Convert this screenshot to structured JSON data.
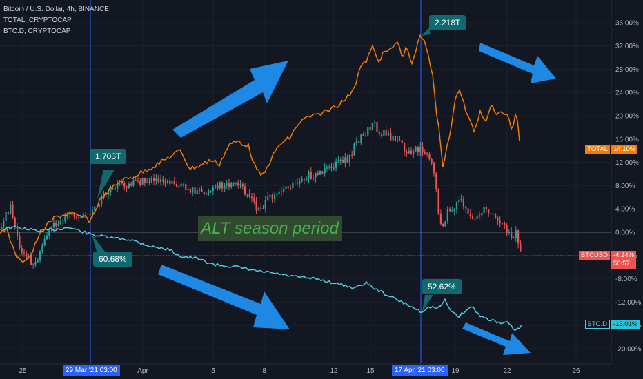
{
  "legend": {
    "line1": "Bitcoin / U.S. Dollar, 4h, BINANCE",
    "line2": "TOTAL, CRYPTOCAP",
    "line3": "BTC.D, CRYPTOCAP"
  },
  "chart_data": {
    "type": "line",
    "yaxis_ticks": [
      "36.00%",
      "32.00%",
      "28.00%",
      "24.00%",
      "20.00%",
      "16.00%",
      "12.00%",
      "8.00%",
      "4.00%",
      "0.00%",
      "-4.00%",
      "-8.00%",
      "-12.00%",
      "-16.00%",
      "-20.00%"
    ],
    "yaxis_values": [
      36,
      32,
      28,
      24,
      20,
      16,
      12,
      8,
      4,
      0,
      -4,
      -8,
      -12,
      -16,
      -20
    ],
    "xaxis_ticks": [
      "25",
      "Apr",
      "5",
      "8",
      "12",
      "15",
      "19",
      "22",
      "26"
    ],
    "ylim": [
      -22,
      38
    ],
    "series": [
      {
        "name": "TOTAL",
        "color": "#f57c00"
      },
      {
        "name": "BTCUSD",
        "color": "#26a69a"
      },
      {
        "name": "BTC.D",
        "color": "#4dd0e1"
      }
    ]
  },
  "price_tags": {
    "total_label": "TOTAL",
    "total_value": "14.10%",
    "btcusd_label": "BTCUSD",
    "btcusd_value": "-4.24%",
    "btcusd_timer": "50:57",
    "btcd_label": "BTC.D",
    "btcd_value": "-16.01%"
  },
  "time_tags": {
    "left": "29 Mar '21   03:00",
    "right": "17 Apr '21   03:00"
  },
  "annotations": {
    "a1": "1.703T",
    "a2": "2.218T",
    "a3": "60.68%",
    "a4": "52.62%",
    "alt_text": "ALT season period"
  },
  "colors": {
    "background": "#131722",
    "arrow": "#1e88e5",
    "up": "#26a69a",
    "down": "#ef5350",
    "total": "#f57c00",
    "btcd": "#4dd0e1"
  }
}
